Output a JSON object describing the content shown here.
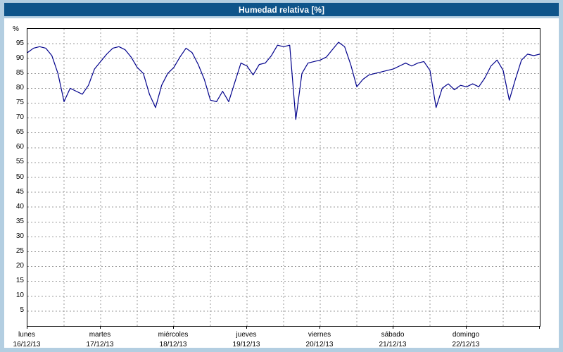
{
  "window": {
    "title": "Humedad relativa [%]"
  },
  "colors": {
    "frame": "#b3cee1",
    "titlebar_bg": "#0e548a",
    "title_text": "#ffffff",
    "line": "#00008b",
    "grid": "#999999",
    "axis_text": "#000000",
    "plot_bg": "#ffffff"
  },
  "chart_data": {
    "type": "line",
    "title": "Humedad relativa [%]",
    "ylabel": "%",
    "xlabel": "",
    "ylim": [
      0,
      100
    ],
    "ytick_min": 5,
    "ytick_max": 95,
    "ytick_step": 5,
    "grid": "dashed",
    "legend": "none",
    "x_unit_hours": 2,
    "days": [
      {
        "name": "lunes",
        "date": "16/12/13"
      },
      {
        "name": "martes",
        "date": "17/12/13"
      },
      {
        "name": "miércoles",
        "date": "18/12/13"
      },
      {
        "name": "jueves",
        "date": "19/12/13"
      },
      {
        "name": "viernes",
        "date": "20/12/13"
      },
      {
        "name": "sábado",
        "date": "21/12/13"
      },
      {
        "name": "domingo",
        "date": "22/12/13"
      }
    ],
    "series": [
      {
        "name": "Humedad relativa",
        "values": [
          92,
          93.5,
          94,
          93.5,
          91,
          85,
          75.5,
          80,
          79,
          78,
          81,
          86.5,
          89,
          91.5,
          93.5,
          94,
          93,
          90.5,
          87,
          85,
          78,
          73.5,
          81,
          85,
          87,
          90.5,
          93.5,
          92,
          88,
          83,
          76,
          75.5,
          79,
          75.5,
          82,
          88.5,
          87.5,
          84.5,
          88,
          88.5,
          91,
          94.5,
          94,
          94.5,
          69.5,
          85,
          88.5,
          89,
          89.5,
          90.5,
          93,
          95.5,
          94,
          88,
          80.5,
          83,
          84.5,
          85,
          85.5,
          86,
          86.5,
          87.5,
          88.5,
          87.5,
          88.5,
          89,
          86,
          73.5,
          80,
          81.5,
          79.5,
          81,
          80.5,
          81.5,
          80.5,
          83.5,
          87.5,
          89.5,
          86,
          76,
          83,
          89.5,
          91.5,
          91,
          91.5
        ]
      }
    ]
  }
}
